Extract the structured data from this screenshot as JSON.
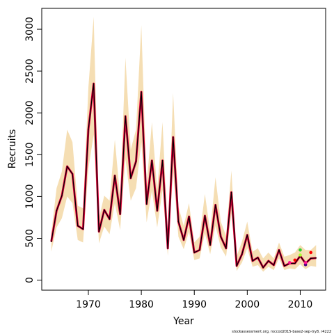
{
  "chart_data": {
    "type": "line",
    "title": "",
    "xlabel": "Year",
    "ylabel": "Recruits",
    "xlim": [
      1961.2,
      2014.8
    ],
    "ylim": [
      -120,
      3250
    ],
    "xticks": [
      1970,
      1980,
      1990,
      2000,
      2010
    ],
    "yticks": [
      0,
      500,
      1000,
      1500,
      2000,
      2500,
      3000
    ],
    "grid": false,
    "legend": "none",
    "colors": {
      "band": "#F5DEB3",
      "main_line": "#E0003C",
      "overlay_line": "#000000",
      "retro_points": [
        "#FF1493",
        "#FF0000",
        "#32CD32",
        "#ADFF2F",
        "#4B0082"
      ]
    },
    "years": [
      1963,
      1964,
      1965,
      1966,
      1967,
      1968,
      1969,
      1970,
      1971,
      1972,
      1973,
      1974,
      1975,
      1976,
      1977,
      1978,
      1979,
      1980,
      1981,
      1982,
      1983,
      1984,
      1985,
      1986,
      1987,
      1988,
      1989,
      1990,
      1991,
      1992,
      1993,
      1994,
      1995,
      1996,
      1997,
      1998,
      1999,
      2000,
      2001,
      2002,
      2003,
      2004,
      2005,
      2006,
      2007,
      2008,
      2009,
      2010,
      2011,
      2012,
      2013
    ],
    "recruits": [
      460,
      830,
      1010,
      1360,
      1270,
      650,
      610,
      1800,
      2350,
      580,
      840,
      730,
      1250,
      790,
      1960,
      1220,
      1420,
      2250,
      910,
      1430,
      830,
      1430,
      380,
      1710,
      700,
      480,
      760,
      330,
      360,
      770,
      420,
      900,
      520,
      380,
      1050,
      170,
      310,
      540,
      230,
      270,
      150,
      230,
      180,
      360,
      170,
      200,
      200,
      290,
      200,
      260,
      265
    ],
    "band_upper": [
      560,
      1100,
      1300,
      1800,
      1650,
      890,
      860,
      2300,
      3150,
      740,
      1010,
      950,
      1680,
      990,
      2660,
      1560,
      1800,
      3050,
      1140,
      1890,
      1080,
      1890,
      560,
      2240,
      880,
      650,
      920,
      450,
      520,
      1030,
      580,
      1230,
      700,
      530,
      1310,
      290,
      460,
      700,
      340,
      380,
      260,
      330,
      260,
      450,
      280,
      300,
      330,
      420,
      360,
      360,
      420
    ],
    "band_lower": [
      340,
      630,
      740,
      1000,
      920,
      480,
      450,
      1330,
      1740,
      440,
      640,
      550,
      920,
      600,
      1450,
      950,
      1100,
      1650,
      690,
      1070,
      630,
      1080,
      290,
      1300,
      520,
      370,
      580,
      240,
      260,
      560,
      310,
      650,
      390,
      280,
      800,
      110,
      210,
      380,
      160,
      180,
      100,
      160,
      120,
      260,
      120,
      140,
      130,
      190,
      130,
      170,
      160
    ],
    "retro_points": [
      {
        "x": 2008,
        "y": 210
      },
      {
        "x": 2009,
        "y": 240
      },
      {
        "x": 2010,
        "y": 360
      },
      {
        "x": 2010,
        "y": 300
      },
      {
        "x": 2011,
        "y": 185
      },
      {
        "x": 2011,
        "y": 210
      },
      {
        "x": 2012,
        "y": 330
      }
    ]
  },
  "footer": "stockassessment.org, roccod2015-base2-sep-try8, r4222"
}
